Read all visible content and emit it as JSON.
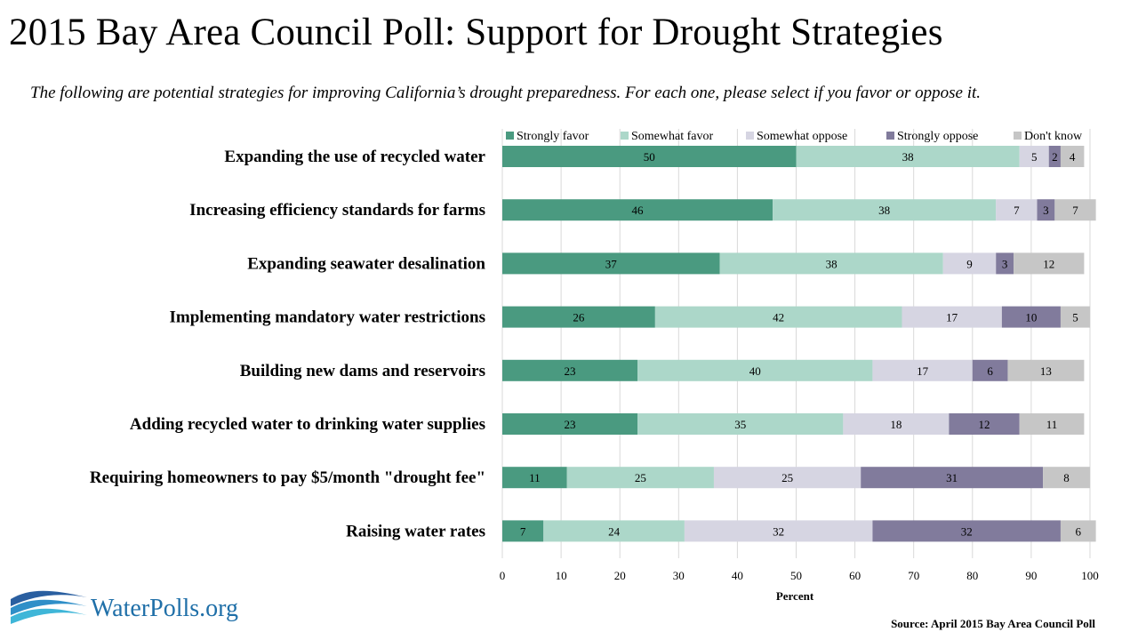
{
  "title": "2015 Bay Area Council Poll: Support for Drought Strategies",
  "subtitle": "The following are potential strategies for improving California’s drought preparedness. For each one, please select if  you favor or oppose it.",
  "source": "Source: April 2015 Bay Area Council Poll",
  "logo_text": "WaterPolls.org",
  "chart_data": {
    "type": "bar",
    "orientation": "horizontal",
    "stacked": true,
    "categories": [
      "Expanding the use of recycled water",
      "Increasing efficiency standards for farms",
      "Expanding seawater desalination",
      "Implementing mandatory water restrictions",
      "Building new dams and reservoirs",
      "Adding recycled water to drinking water supplies",
      "Requiring homeowners to pay $5/month \"drought fee\"",
      "Raising water rates"
    ],
    "series": [
      {
        "name": "Strongly favor",
        "color": "#4a9a80",
        "values": [
          50,
          46,
          37,
          26,
          23,
          23,
          11,
          7
        ]
      },
      {
        "name": "Somewhat favor",
        "color": "#acd7c9",
        "values": [
          38,
          38,
          38,
          42,
          40,
          35,
          25,
          24
        ]
      },
      {
        "name": "Somewhat oppose",
        "color": "#d6d5e2",
        "values": [
          5,
          7,
          9,
          17,
          17,
          18,
          25,
          32
        ]
      },
      {
        "name": "Strongly oppose",
        "color": "#817b9c",
        "values": [
          2,
          3,
          3,
          10,
          6,
          12,
          31,
          32
        ]
      },
      {
        "name": "Don't know",
        "color": "#c6c6c6",
        "values": [
          4,
          7,
          12,
          5,
          13,
          11,
          8,
          6
        ]
      }
    ],
    "xlabel": "Percent",
    "xlim": [
      0,
      100
    ],
    "xticks": [
      0,
      10,
      20,
      30,
      40,
      50,
      60,
      70,
      80,
      90,
      100
    ],
    "grid": true,
    "legend": "top"
  }
}
